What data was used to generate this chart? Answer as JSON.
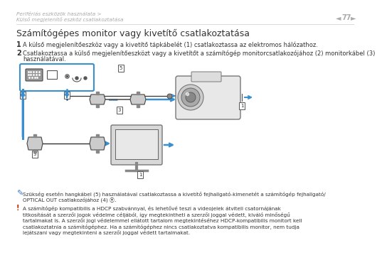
{
  "background_color": "#ffffff",
  "header_line1": "Perifériás eszközök használata >",
  "header_line2": "Külső megjelenítő eszköz csatlakoztatása",
  "page_number": "77",
  "section_title": "Számítógépes monitor vagy kivetítő csatlakoztatása",
  "step1_num": "1",
  "step1": "A külső megjelenítőeszköz vagy a kivetítő tápkábelét (1) csatlakoztassa az elektromos hálózathoz.",
  "step2_num": "2",
  "step2_line1": "Csatlakoztassa a külső megjelenítőeszközt vagy a kivetítőt a számítógép monitorcsatlakozójához (2) monitorkábel (3)",
  "step2_line2": "használatával.",
  "note1_text": "Szükség esetén hangkábel (5) használatával csatlakoztassa a kivetítő fejhallgató-kimenetét a számítógép fejhallgató/OPTICAL OUT csatlakozójához (4) ⦿.",
  "note2_text": "A számítógép kompatibilis a HDCP szabvánnyal, és lehetővé teszi a videojelek átviteli csatornájának titkosítását a szerzői jogok védelme céljából, így megtekintheti a szerzői joggal védett, kiváló minőségű tartalmakat is. A szerzői jogi védelemmel ellátott tartalom megtekintéséhez HDCP-kompatibilis monitort kell csatlakoztatnia a számítógéphez. Ha a számítógéphez nincs csatlakoztatva kompatibilis monitor, nem tudja lejátszani vagy megtekinteni a szerzői joggal védett tartalmakat.",
  "header_color": "#aaaaaa",
  "title_color": "#333333",
  "text_color": "#333333",
  "note_icon_color": "#3a7abf",
  "warning_icon_color": "#cc2200",
  "arrow_color": "#3a8fcf",
  "dashed_color": "#3a8fcf",
  "border_color": "#3a8fcf",
  "connector_color": "#555555",
  "device_fill": "#e8e8e8",
  "device_edge": "#777777",
  "label_border": "#555555"
}
